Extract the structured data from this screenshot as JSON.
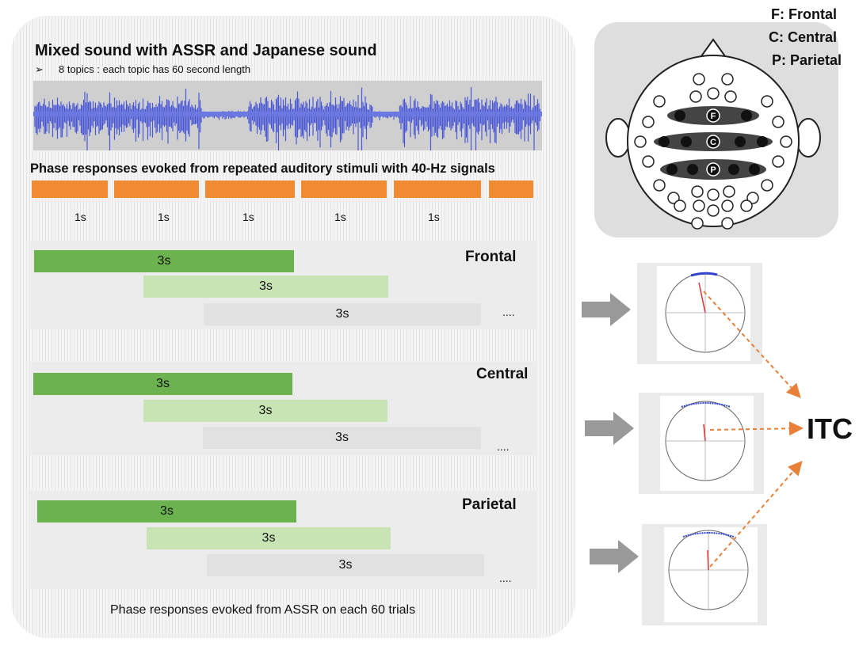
{
  "wave": {
    "title": "Mixed sound with ASSR and Japanese sound",
    "bullet": "➢",
    "subtitle": "8 topics : each topic has 60 second length"
  },
  "phase": {
    "title": "Phase responses evoked from repeated auditory stimuli with 40-Hz signals",
    "ticks": [
      "1s",
      "1s",
      "1s",
      "1s",
      "1s"
    ]
  },
  "groups": [
    {
      "label": "Frontal",
      "bars": [
        "3s",
        "3s",
        "3s"
      ],
      "ellipsis": "...."
    },
    {
      "label": "Central",
      "bars": [
        "3s",
        "3s",
        "3s"
      ],
      "ellipsis": "...."
    },
    {
      "label": "Parietal",
      "bars": [
        "3s",
        "3s",
        "3s"
      ],
      "ellipsis": "...."
    }
  ],
  "caption": "Phase responses evoked from ASSR on each 60 trials",
  "legend": {
    "frontal": "F: Frontal",
    "central": "C: Central",
    "parietal": "P: Parietal"
  },
  "electrodes": {
    "f": "F",
    "c": "C",
    "p": "P"
  },
  "itc": "ITC",
  "colors": {
    "orange": "#f08a33",
    "green_dark": "#6cb24f",
    "green_light": "#c8e4b4",
    "wave_blue": "#4b58d6",
    "arrow_orange": "#e8803a"
  }
}
